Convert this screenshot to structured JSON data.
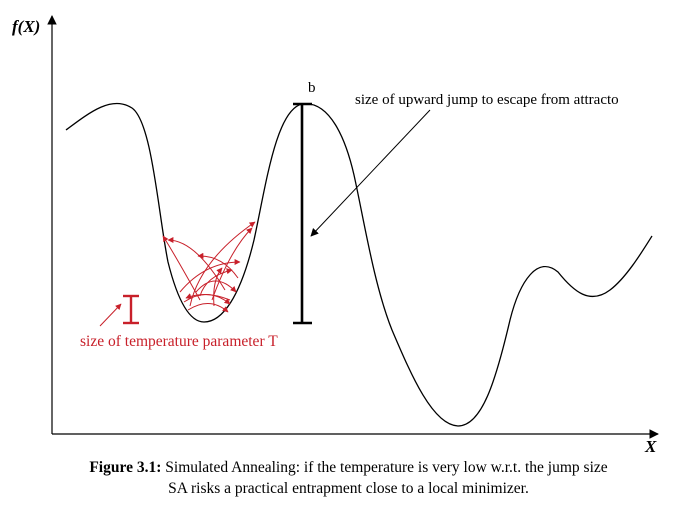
{
  "axes": {
    "y_label": "f(X)",
    "x_label": "X"
  },
  "annotations": {
    "peak_label": "b",
    "jump_label": "size of upward jump to escape from attracto",
    "temperature_label": "size of temperature parameter T"
  },
  "caption": {
    "figure_ref": "Figure 3.1:",
    "line1": " Simulated Annealing: if the temperature is very low w.r.t. the jump size",
    "line2": "SA risks a practical entrapment close to a local minimizer."
  },
  "colors": {
    "curve": "#000000",
    "temperature": "#c8202a"
  }
}
